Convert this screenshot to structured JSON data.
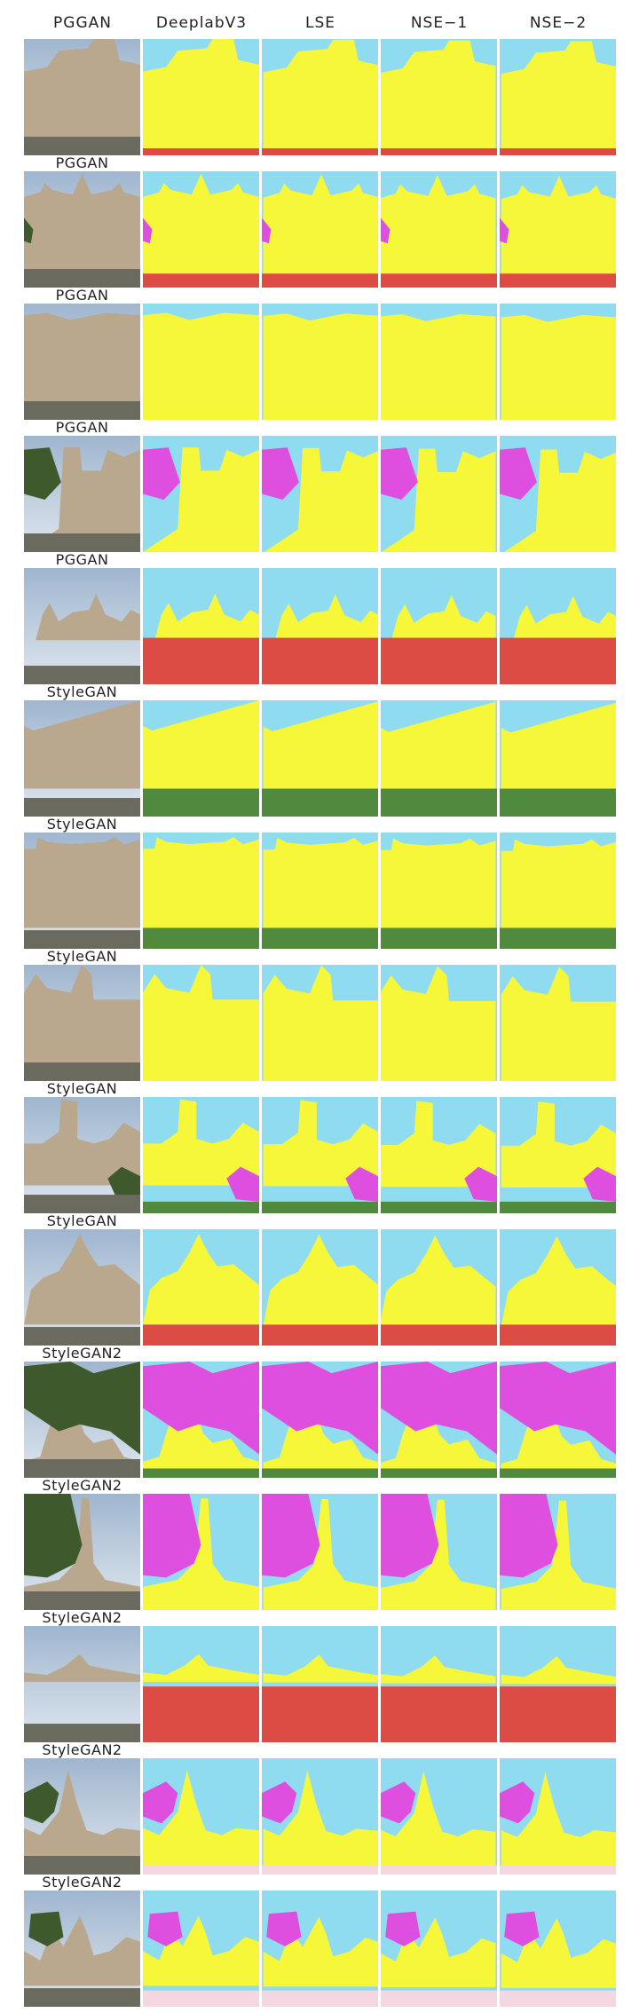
{
  "columns": [
    "PGGAN",
    "DeeplabV3",
    "LSE",
    "NSE−1",
    "NSE−2"
  ],
  "rows": [
    {
      "label": "PGGAN"
    },
    {
      "label": "PGGAN"
    },
    {
      "label": "PGGAN"
    },
    {
      "label": "PGGAN"
    },
    {
      "label": "PGGAN"
    },
    {
      "label": "StyleGAN"
    },
    {
      "label": "StyleGAN"
    },
    {
      "label": "StyleGAN"
    },
    {
      "label": "StyleGAN"
    },
    {
      "label": "StyleGAN"
    },
    {
      "label": "StyleGAN2"
    },
    {
      "label": "StyleGAN2"
    },
    {
      "label": "StyleGAN2"
    },
    {
      "label": "StyleGAN2"
    },
    {
      "label": "StyleGAN2"
    }
  ],
  "colors": {
    "sky": "#8fdcf0",
    "building": "#f7f73a",
    "tree": "#df4fdf",
    "grass": "#4f8a3f",
    "road": "#dc4b44",
    "person": "#1d2f8a",
    "other": "#f5d7e1"
  }
}
